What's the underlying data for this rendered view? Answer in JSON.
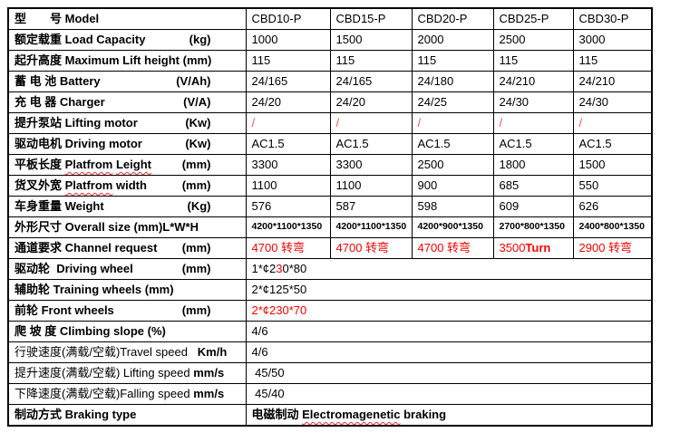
{
  "colors": {
    "text": "#000000",
    "red": "#ff0000",
    "soft_red": "#ff4d4d",
    "border": "#000000",
    "background": "#ffffff",
    "spellcheck_squiggle": "#ff2a2a"
  },
  "table": {
    "column_count": 6,
    "header": {
      "label": "型　　号 Model",
      "models": [
        "CBD10-P",
        "CBD15-P",
        "CBD20-P",
        "CBD25-P",
        "CBD30-P"
      ]
    },
    "rows": [
      {
        "name": "model",
        "label": [
          {
            "t": "型　　号 Model",
            "b": true
          }
        ],
        "cells": [
          [
            {
              "t": "CBD10-P"
            }
          ],
          [
            {
              "t": "CBD15-P"
            }
          ],
          [
            {
              "t": "CBD20-P"
            }
          ],
          [
            {
              "t": "CBD25-P"
            }
          ],
          [
            {
              "t": "CBD30-P"
            }
          ]
        ]
      },
      {
        "name": "load-capacity",
        "label": [
          {
            "t": "额定载重 Load Capacity",
            "b": true
          }
        ],
        "unit": "(kg)",
        "cells": [
          [
            {
              "t": "1000"
            }
          ],
          [
            {
              "t": "1500"
            }
          ],
          [
            {
              "t": "2000"
            }
          ],
          [
            {
              "t": "2500"
            }
          ],
          [
            {
              "t": "3000"
            }
          ]
        ]
      },
      {
        "name": "max-lift-height",
        "label": [
          {
            "t": "起升高度 Maximum Lift height (mm)",
            "b": true
          }
        ],
        "cells": [
          [
            {
              "t": "115"
            }
          ],
          [
            {
              "t": "115"
            }
          ],
          [
            {
              "t": "115"
            }
          ],
          [
            {
              "t": "115"
            }
          ],
          [
            {
              "t": "115"
            }
          ]
        ]
      },
      {
        "name": "battery",
        "label": [
          {
            "t": "蓄 电 池 Battery",
            "b": true
          }
        ],
        "unit": "(V/Ah)",
        "cells": [
          [
            {
              "t": "24/165"
            }
          ],
          [
            {
              "t": "24/165"
            }
          ],
          [
            {
              "t": "24/180"
            }
          ],
          [
            {
              "t": "24/210"
            }
          ],
          [
            {
              "t": "24/210"
            }
          ]
        ]
      },
      {
        "name": "charger",
        "label": [
          {
            "t": "充 电 器 Charger",
            "b": true
          }
        ],
        "unit": "(V/A)",
        "cells": [
          [
            {
              "t": "24/20"
            }
          ],
          [
            {
              "t": "24/20"
            }
          ],
          [
            {
              "t": "24/25"
            }
          ],
          [
            {
              "t": "24/30"
            }
          ],
          [
            {
              "t": "24/30"
            }
          ]
        ]
      },
      {
        "name": "lifting-motor",
        "label": [
          {
            "t": "提升泵站 Lifting motor",
            "b": true
          }
        ],
        "unit": "(Kw)",
        "cells": [
          [
            {
              "t": "/",
              "c": "soft"
            }
          ],
          [
            {
              "t": "/",
              "c": "soft"
            }
          ],
          [
            {
              "t": "/",
              "c": "soft"
            }
          ],
          [
            {
              "t": "/",
              "c": "soft"
            }
          ],
          [
            {
              "t": "/",
              "c": "soft"
            }
          ]
        ]
      },
      {
        "name": "driving-motor",
        "label": [
          {
            "t": "驱动电机 Driving motor",
            "b": true
          }
        ],
        "unit": "(Kw)",
        "cells": [
          [
            {
              "t": "AC1.5"
            }
          ],
          [
            {
              "t": "AC1.5"
            }
          ],
          [
            {
              "t": "AC1.5"
            }
          ],
          [
            {
              "t": "AC1.5"
            }
          ],
          [
            {
              "t": "AC1.5"
            }
          ]
        ]
      },
      {
        "name": "platform-length",
        "label": [
          {
            "t": "平板长度 ",
            "b": true
          },
          {
            "t": "Platfrom",
            "b": true,
            "sq": true
          },
          {
            "t": " ",
            "b": true
          },
          {
            "t": "Leight",
            "b": true,
            "sq": true
          }
        ],
        "unit": "(mm)",
        "cells": [
          [
            {
              "t": "3300"
            }
          ],
          [
            {
              "t": "3300"
            }
          ],
          [
            {
              "t": "2500"
            }
          ],
          [
            {
              "t": "1800"
            }
          ],
          [
            {
              "t": "1500"
            }
          ]
        ]
      },
      {
        "name": "platform-width",
        "label": [
          {
            "t": "货叉外宽 ",
            "b": true
          },
          {
            "t": "Platfrom",
            "b": true,
            "sq": true
          },
          {
            "t": " width",
            "b": true
          }
        ],
        "unit": "(mm)",
        "cells": [
          [
            {
              "t": "1100"
            }
          ],
          [
            {
              "t": "1100"
            }
          ],
          [
            {
              "t": "900"
            }
          ],
          [
            {
              "t": "685"
            }
          ],
          [
            {
              "t": "550"
            }
          ]
        ]
      },
      {
        "name": "weight",
        "label": [
          {
            "t": "车身重量 Weight",
            "b": true
          }
        ],
        "unit": "(Kg)",
        "cells": [
          [
            {
              "t": "576"
            }
          ],
          [
            {
              "t": "587"
            }
          ],
          [
            {
              "t": "598"
            }
          ],
          [
            {
              "t": "609"
            }
          ],
          [
            {
              "t": "626"
            }
          ]
        ]
      },
      {
        "name": "overall-size",
        "small": true,
        "label": [
          {
            "t": "外形尺寸 Overall size (mm)L*W*H",
            "b": true
          }
        ],
        "cells": [
          [
            {
              "t": "4200*1100*1350"
            }
          ],
          [
            {
              "t": "4200*1100*1350"
            }
          ],
          [
            {
              "t": "4200*900*1350"
            }
          ],
          [
            {
              "t": "2700*800*1350"
            }
          ],
          [
            {
              "t": "2400*800*1350"
            }
          ]
        ]
      },
      {
        "name": "channel-request",
        "label": [
          {
            "t": "通道要求 Channel request",
            "b": true
          }
        ],
        "unit": "(mm)",
        "cells": [
          [
            {
              "t": "4700 转弯",
              "c": "red"
            }
          ],
          [
            {
              "t": "4700 转弯",
              "c": "red"
            }
          ],
          [
            {
              "t": "4700 转弯",
              "c": "red"
            }
          ],
          [
            {
              "t": "3500",
              "c": "red"
            },
            {
              "t": "Turn",
              "c": "red",
              "b": true
            }
          ],
          [
            {
              "t": "2900 转弯",
              "c": "red"
            }
          ]
        ]
      },
      {
        "name": "driving-wheel",
        "label": [
          {
            "t": "驱动轮  Driving wheel",
            "b": true
          }
        ],
        "unit": "(mm)",
        "span": true,
        "cells": [
          [
            {
              "t": "1*¢2"
            },
            {
              "t": "3",
              "c": "red"
            },
            {
              "t": "0*80"
            }
          ]
        ]
      },
      {
        "name": "training-wheels",
        "label": [
          {
            "t": "辅助轮 Training wheels (mm)",
            "b": true
          }
        ],
        "span": true,
        "cells": [
          [
            {
              "t": "2*¢125*50"
            }
          ]
        ]
      },
      {
        "name": "front-wheels",
        "label": [
          {
            "t": "前轮 Front wheels",
            "b": true
          }
        ],
        "unit": "(mm)",
        "span": true,
        "cells": [
          [
            {
              "t": "2*¢230*70",
              "c": "red"
            }
          ]
        ]
      },
      {
        "name": "climbing-slope",
        "label": [
          {
            "t": "爬 坡 度 Climbing slope (%)",
            "b": true
          }
        ],
        "span": true,
        "cells": [
          [
            {
              "t": "4/6"
            }
          ]
        ]
      },
      {
        "name": "travel-speed",
        "label": [
          {
            "t": "行驶速度(满载/空载)Travel speed   "
          },
          {
            "t": "Km/h",
            "b": true
          }
        ],
        "span": true,
        "cells": [
          [
            {
              "t": "4/6"
            }
          ]
        ]
      },
      {
        "name": "lifting-speed",
        "label": [
          {
            "t": "提升速度(满载/空载) Lifting speed "
          },
          {
            "t": "mm/s",
            "b": true
          }
        ],
        "span": true,
        "cells": [
          [
            {
              "t": " 45/50"
            }
          ]
        ]
      },
      {
        "name": "falling-speed",
        "label": [
          {
            "t": "下降速度(满载/空载)Falling speed "
          },
          {
            "t": "mm/s",
            "b": true
          }
        ],
        "span": true,
        "cells": [
          [
            {
              "t": " 45/40"
            }
          ]
        ]
      },
      {
        "name": "braking-type",
        "label": [
          {
            "t": "制动方式 Braking type",
            "b": true
          }
        ],
        "span": true,
        "cells": [
          [
            {
              "t": "电磁制动 ",
              "b": true
            },
            {
              "t": "Electromagenetic",
              "b": true,
              "sq": true
            },
            {
              "t": " braking",
              "b": true
            }
          ]
        ]
      }
    ]
  }
}
